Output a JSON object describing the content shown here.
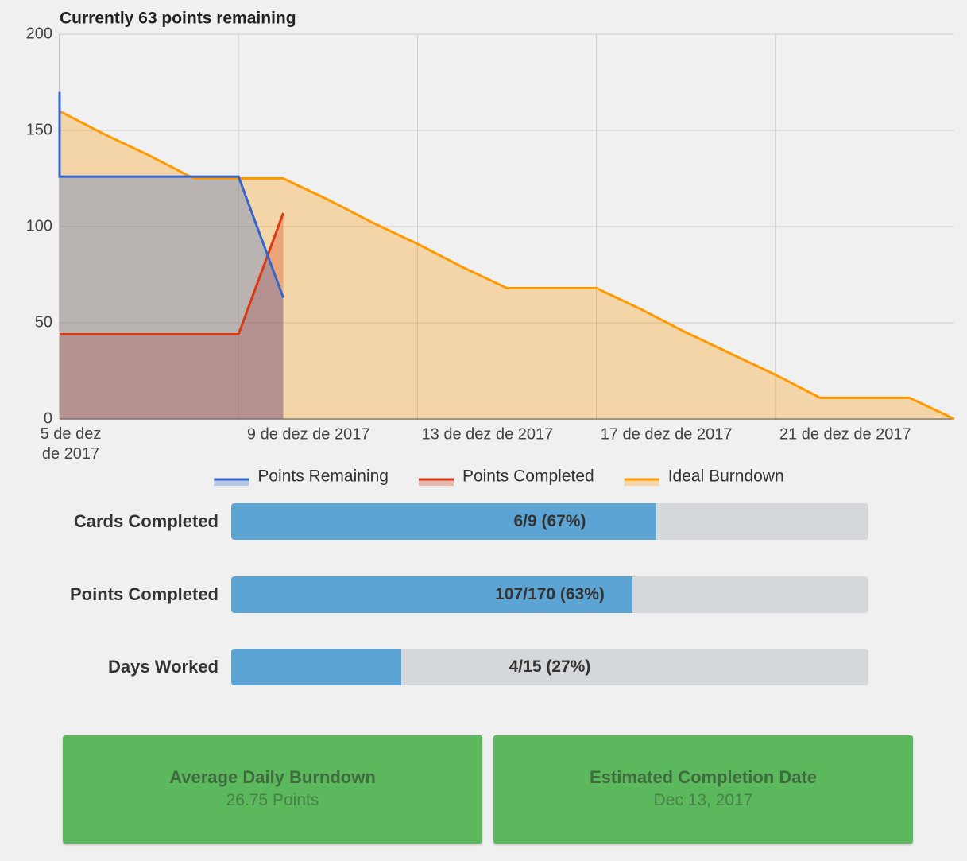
{
  "chart_data": {
    "type": "line",
    "title": "Currently 63 points remaining",
    "x": [
      "2017-12-05",
      "2017-12-05",
      "2017-12-06",
      "2017-12-07",
      "2017-12-08",
      "2017-12-09",
      "2017-12-10",
      "2017-12-11",
      "2017-12-12",
      "2017-12-13",
      "2017-12-14",
      "2017-12-15",
      "2017-12-16",
      "2017-12-17",
      "2017-12-18",
      "2017-12-19",
      "2017-12-20",
      "2017-12-21",
      "2017-12-22",
      "2017-12-23",
      "2017-12-24",
      "2017-12-25"
    ],
    "series": [
      {
        "name": "Points Remaining",
        "color": "#3366cc",
        "values": [
          170,
          126,
          126,
          126,
          126,
          126,
          63,
          null,
          null,
          null,
          null,
          null,
          null,
          null,
          null,
          null,
          null,
          null,
          null,
          null,
          null,
          null
        ]
      },
      {
        "name": "Points Completed",
        "color": "#dc3912",
        "values": [
          44,
          44,
          44,
          44,
          44,
          44,
          107,
          null,
          null,
          null,
          null,
          null,
          null,
          null,
          null,
          null,
          null,
          null,
          null,
          null,
          null,
          null
        ]
      },
      {
        "name": "Ideal Burndown",
        "color": "#ff9900",
        "values": [
          160,
          160,
          148,
          137,
          125,
          125,
          125,
          114,
          102,
          91,
          79,
          68,
          68,
          68,
          57,
          45,
          34,
          23,
          11,
          11,
          11,
          0
        ]
      }
    ],
    "xlim": [
      "2017-12-05",
      "2017-12-25"
    ],
    "xticks": [
      {
        "value": "2017-12-05",
        "label": "5 de dez de 2017"
      },
      {
        "value": "2017-12-09",
        "label": "9 de dez de 2017"
      },
      {
        "value": "2017-12-13",
        "label": "13 de dez de 2017"
      },
      {
        "value": "2017-12-17",
        "label": "17 de dez de 2017"
      },
      {
        "value": "2017-12-21",
        "label": "21 de dez de 2017"
      }
    ],
    "ylim": [
      0,
      200
    ],
    "yticks": [
      0,
      50,
      100,
      150,
      200
    ],
    "grid": true,
    "area": true,
    "legend": "bottom"
  },
  "progress": [
    {
      "label": "Cards Completed",
      "value": 6,
      "max": 9,
      "text": "6/9 (67%)"
    },
    {
      "label": "Points Completed",
      "value": 107,
      "max": 170,
      "text": "107/170 (63%)"
    },
    {
      "label": "Days Worked",
      "value": 4,
      "max": 15,
      "text": "4/15 (27%)"
    }
  ],
  "stats": [
    {
      "title": "Average Daily Burndown",
      "value": "26.75 Points"
    },
    {
      "title": "Estimated Completion Date",
      "value": "Dec 13, 2017"
    }
  ]
}
